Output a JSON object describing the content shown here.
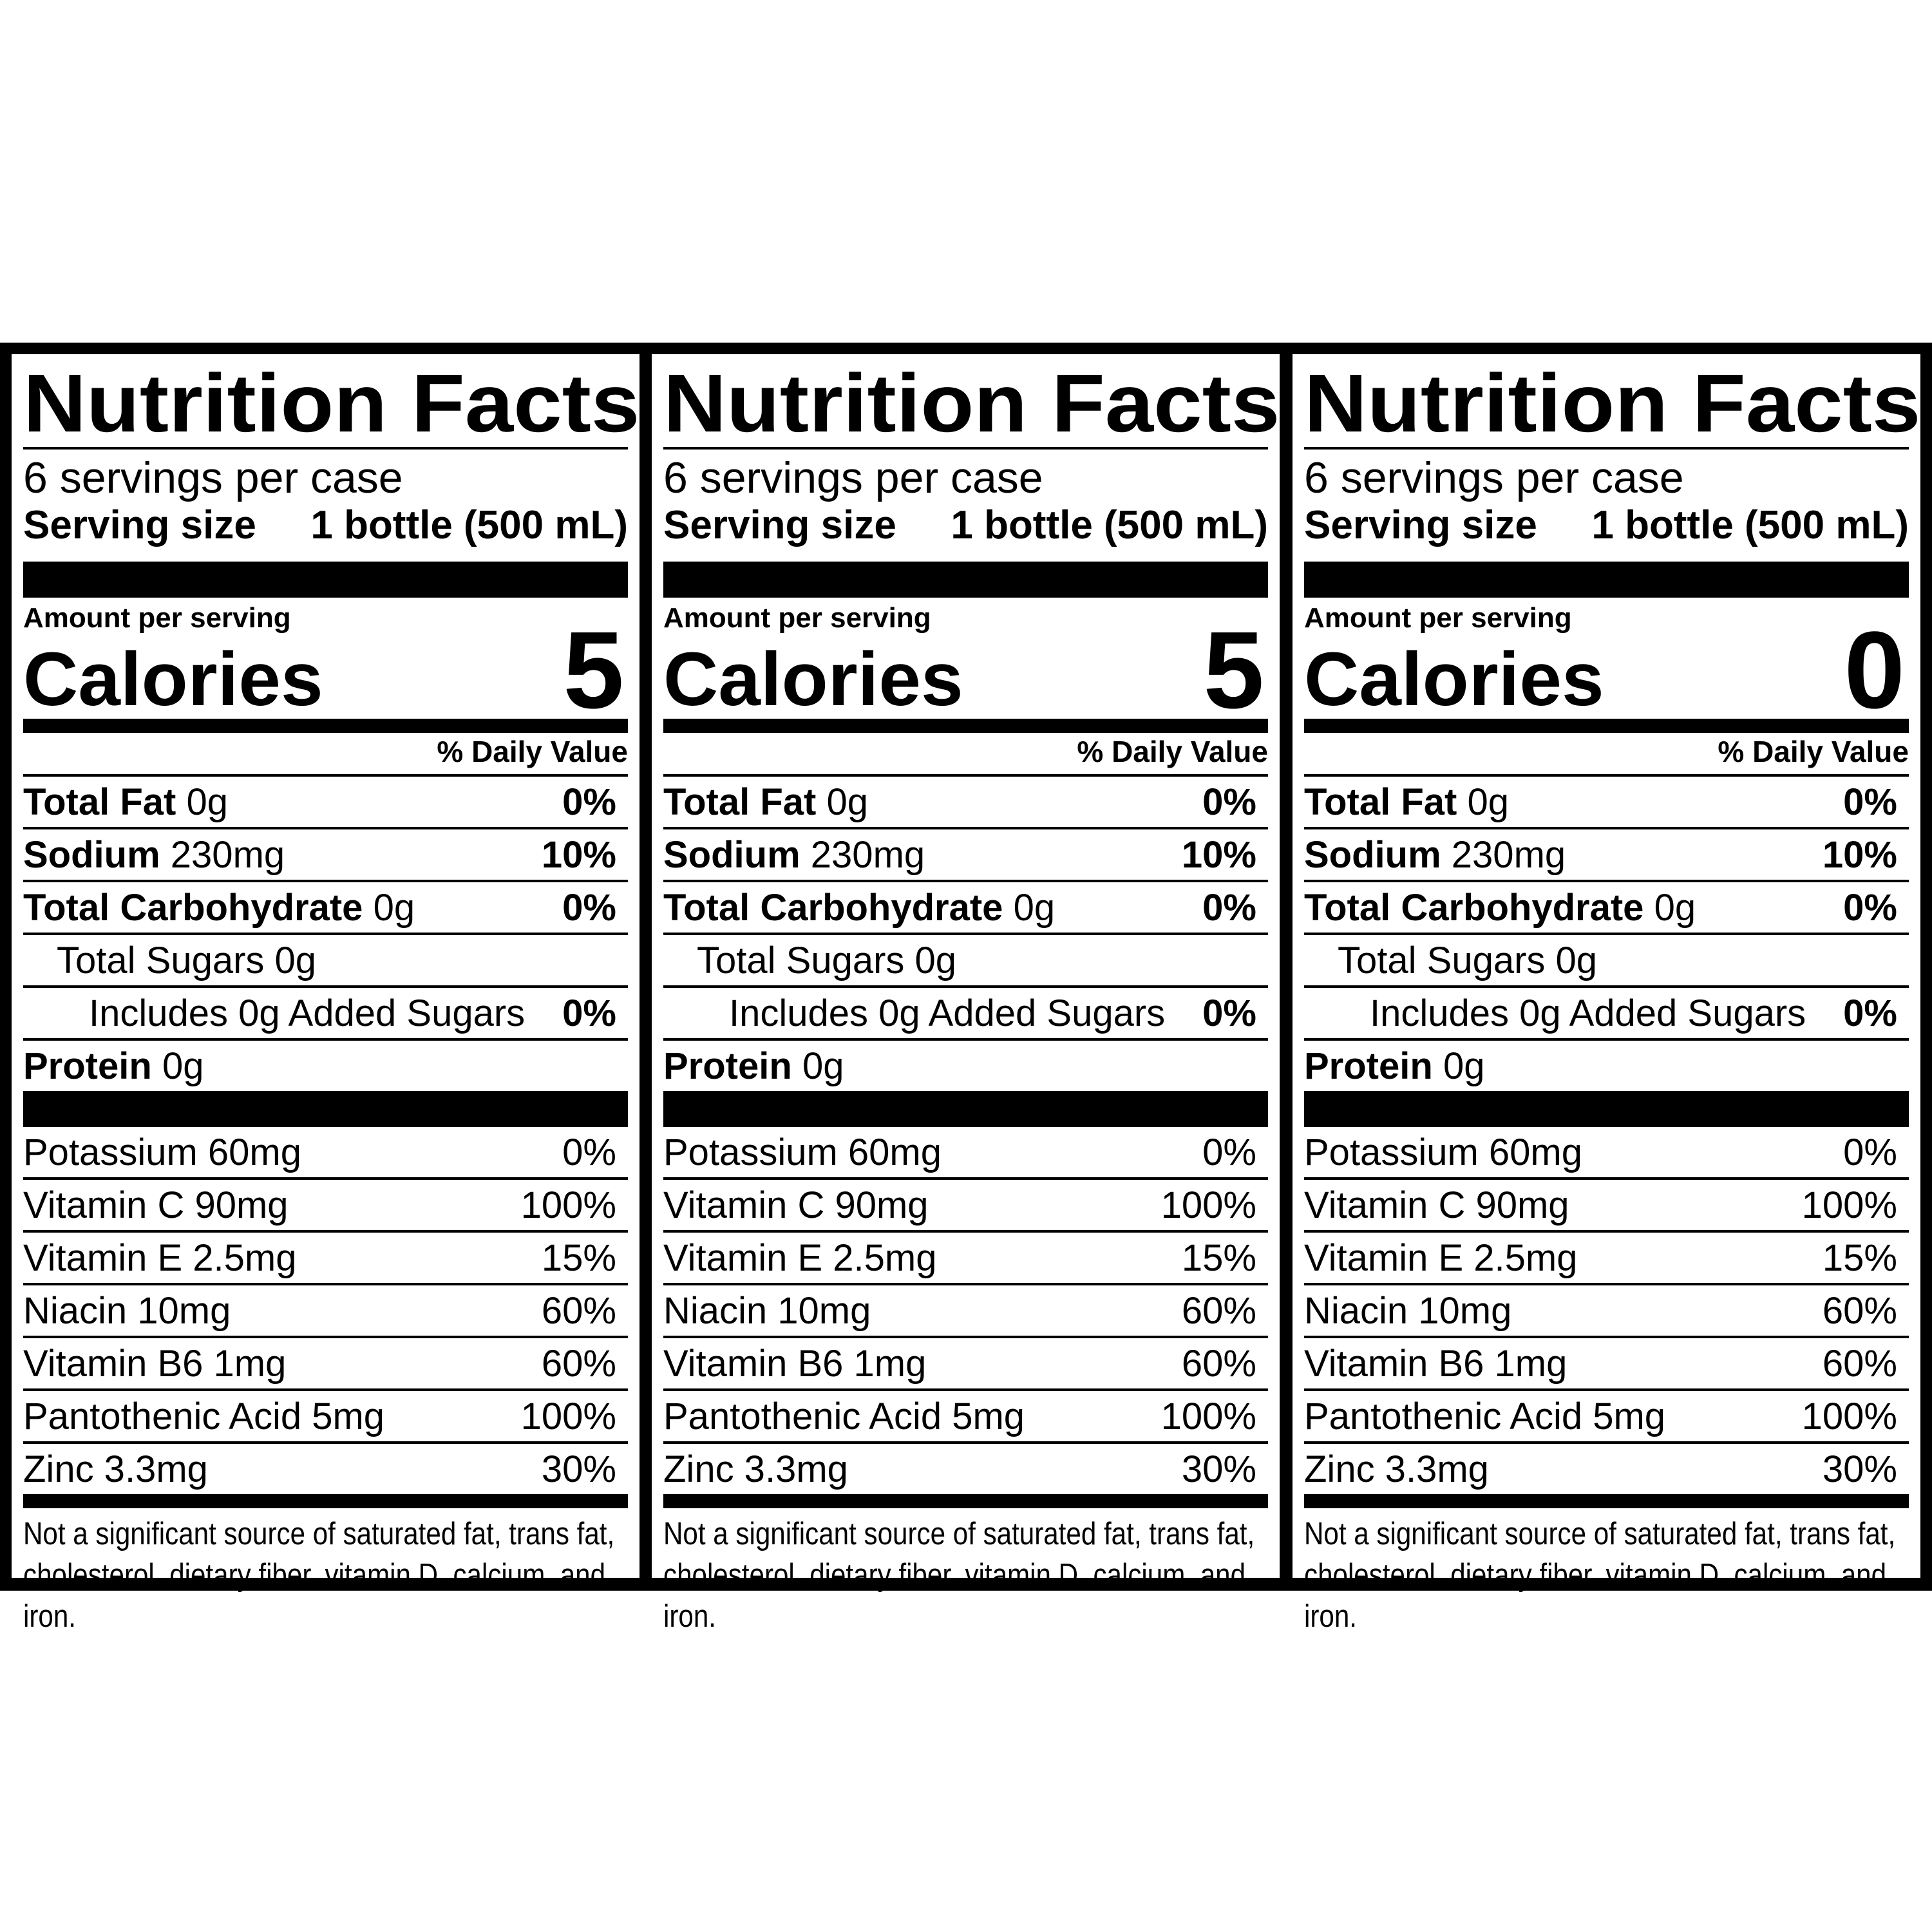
{
  "panels": [
    {
      "title": "Nutrition Facts",
      "servings_per_container": "6 servings per case",
      "serving_size_label": "Serving size",
      "serving_size_value": "1 bottle (500 mL)",
      "amount_per_serving": "Amount per serving",
      "calories_label": "Calories",
      "calories_value": "5",
      "dv_header": "% Daily Value",
      "nutrients": [
        {
          "name": "Total Fat",
          "amount": "0g",
          "dv": "0%"
        },
        {
          "name": "Sodium",
          "amount": "230mg",
          "dv": "10%"
        },
        {
          "name": "Total Carbohydrate",
          "amount": "0g",
          "dv": "0%"
        },
        {
          "name": "Total Sugars 0g",
          "amount": "",
          "dv": ""
        },
        {
          "name": "Includes 0g Added Sugars",
          "amount": "",
          "dv": "0%"
        },
        {
          "name": "Protein",
          "amount": "0g",
          "dv": ""
        }
      ],
      "vitamins": [
        {
          "label": "Potassium 60mg",
          "dv": "0%"
        },
        {
          "label": "Vitamin C 90mg",
          "dv": "100%"
        },
        {
          "label": "Vitamin E 2.5mg",
          "dv": "15%"
        },
        {
          "label": "Niacin 10mg",
          "dv": "60%"
        },
        {
          "label": "Vitamin B6 1mg",
          "dv": "60%"
        },
        {
          "label": "Pantothenic Acid 5mg",
          "dv": "100%"
        },
        {
          "label": "Zinc 3.3mg",
          "dv": "30%"
        }
      ],
      "footnote": "Not a significant source of saturated fat, trans fat, cholesterol, dietary fiber, vitamin D, calcium, and iron."
    },
    {
      "title": "Nutrition Facts",
      "servings_per_container": "6 servings per case",
      "serving_size_label": "Serving size",
      "serving_size_value": "1 bottle (500 mL)",
      "amount_per_serving": "Amount per serving",
      "calories_label": "Calories",
      "calories_value": "5",
      "dv_header": "% Daily Value",
      "nutrients": [
        {
          "name": "Total Fat",
          "amount": "0g",
          "dv": "0%"
        },
        {
          "name": "Sodium",
          "amount": "230mg",
          "dv": "10%"
        },
        {
          "name": "Total Carbohydrate",
          "amount": "0g",
          "dv": "0%"
        },
        {
          "name": "Total Sugars 0g",
          "amount": "",
          "dv": ""
        },
        {
          "name": "Includes 0g Added Sugars",
          "amount": "",
          "dv": "0%"
        },
        {
          "name": "Protein",
          "amount": "0g",
          "dv": ""
        }
      ],
      "vitamins": [
        {
          "label": "Potassium 60mg",
          "dv": "0%"
        },
        {
          "label": "Vitamin C 90mg",
          "dv": "100%"
        },
        {
          "label": "Vitamin E 2.5mg",
          "dv": "15%"
        },
        {
          "label": "Niacin 10mg",
          "dv": "60%"
        },
        {
          "label": "Vitamin B6 1mg",
          "dv": "60%"
        },
        {
          "label": "Pantothenic Acid 5mg",
          "dv": "100%"
        },
        {
          "label": "Zinc 3.3mg",
          "dv": "30%"
        }
      ],
      "footnote": "Not a significant source of saturated fat, trans fat, cholesterol, dietary fiber, vitamin D, calcium, and iron."
    },
    {
      "title": "Nutrition Facts",
      "servings_per_container": "6 servings per case",
      "serving_size_label": "Serving size",
      "serving_size_value": "1 bottle (500 mL)",
      "amount_per_serving": "Amount per serving",
      "calories_label": "Calories",
      "calories_value": "0",
      "dv_header": "% Daily Value",
      "nutrients": [
        {
          "name": "Total Fat",
          "amount": "0g",
          "dv": "0%"
        },
        {
          "name": "Sodium",
          "amount": "230mg",
          "dv": "10%"
        },
        {
          "name": "Total Carbohydrate",
          "amount": "0g",
          "dv": "0%"
        },
        {
          "name": "Total Sugars 0g",
          "amount": "",
          "dv": ""
        },
        {
          "name": "Includes 0g Added Sugars",
          "amount": "",
          "dv": "0%"
        },
        {
          "name": "Protein",
          "amount": "0g",
          "dv": ""
        }
      ],
      "vitamins": [
        {
          "label": "Potassium 60mg",
          "dv": "0%"
        },
        {
          "label": "Vitamin C 90mg",
          "dv": "100%"
        },
        {
          "label": "Vitamin E 2.5mg",
          "dv": "15%"
        },
        {
          "label": "Niacin 10mg",
          "dv": "60%"
        },
        {
          "label": "Vitamin B6 1mg",
          "dv": "60%"
        },
        {
          "label": "Pantothenic Acid 5mg",
          "dv": "100%"
        },
        {
          "label": "Zinc 3.3mg",
          "dv": "30%"
        }
      ],
      "footnote": "Not a significant source of saturated fat, trans fat, cholesterol, dietary fiber, vitamin D, calcium, and iron."
    }
  ]
}
